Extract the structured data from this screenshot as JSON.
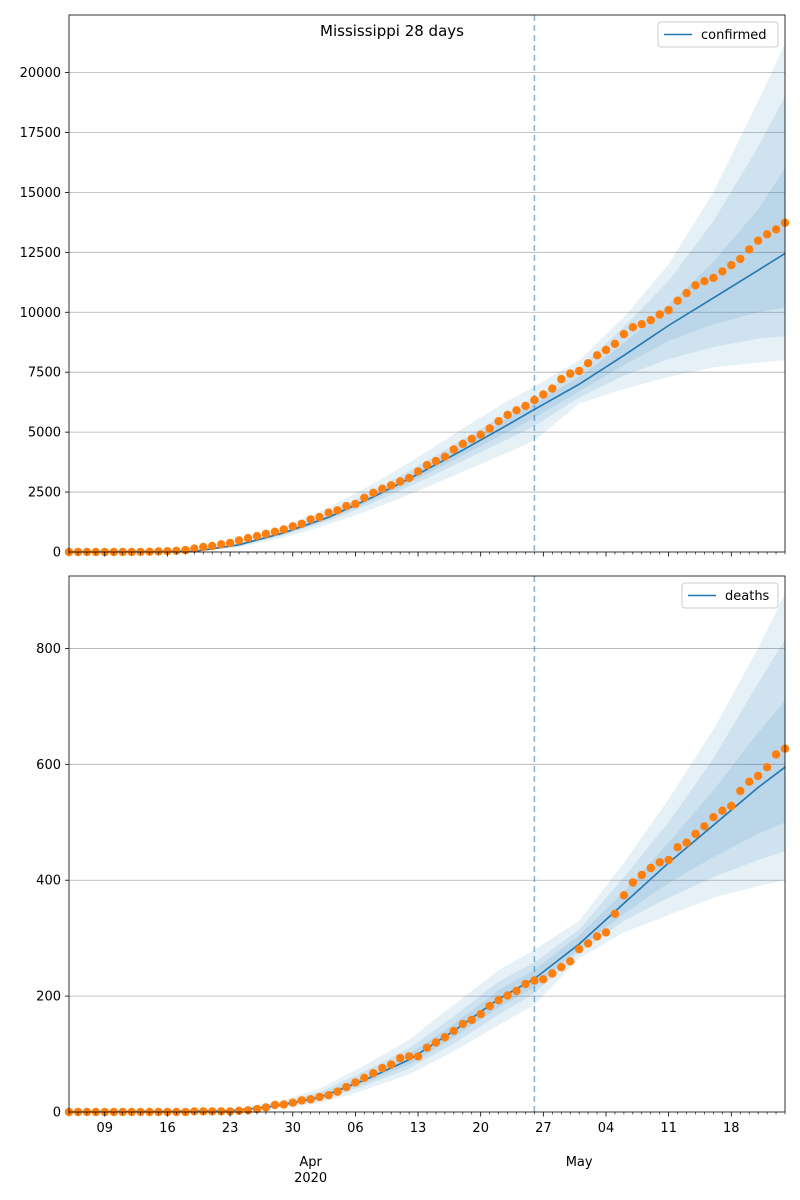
{
  "chart_data": [
    {
      "type": "line",
      "title": "Mississippi 28 days",
      "xlabel": "",
      "ylabel": "",
      "xlim": [
        "2020-03-05",
        "2020-05-24"
      ],
      "ylim": [
        0,
        22400
      ],
      "yticks": [
        0,
        2500,
        5000,
        7500,
        10000,
        12500,
        15000,
        17500,
        20000
      ],
      "grid": "horizontal",
      "legend_placement": "top-right",
      "forecast_start": "2020-04-26",
      "series": [
        {
          "name": "confirmed",
          "kind": "model-line",
          "color": "#1f77b4",
          "x": [
            "2020-03-05",
            "2020-03-19",
            "2020-03-24",
            "2020-03-29",
            "2020-04-03",
            "2020-04-08",
            "2020-04-13",
            "2020-04-18",
            "2020-04-23",
            "2020-04-26",
            "2020-05-01",
            "2020-05-06",
            "2020-05-11",
            "2020-05-16",
            "2020-05-21",
            "2020-05-24"
          ],
          "y": [
            0,
            30,
            300,
            800,
            1450,
            2300,
            3250,
            4250,
            5300,
            5950,
            7000,
            8200,
            9450,
            10600,
            11750,
            12450
          ]
        },
        {
          "name": "",
          "kind": "observed",
          "color": "#ff7f0e",
          "x": [
            "2020-03-05",
            "2020-03-06",
            "2020-03-07",
            "2020-03-08",
            "2020-03-09",
            "2020-03-10",
            "2020-03-11",
            "2020-03-12",
            "2020-03-13",
            "2020-03-14",
            "2020-03-15",
            "2020-03-16",
            "2020-03-17",
            "2020-03-18",
            "2020-03-19",
            "2020-03-20",
            "2020-03-21",
            "2020-03-22",
            "2020-03-23",
            "2020-03-24",
            "2020-03-25",
            "2020-03-26",
            "2020-03-27",
            "2020-03-28",
            "2020-03-29",
            "2020-03-30",
            "2020-03-31",
            "2020-04-01",
            "2020-04-02",
            "2020-04-03",
            "2020-04-04",
            "2020-04-05",
            "2020-04-06",
            "2020-04-07",
            "2020-04-08",
            "2020-04-09",
            "2020-04-10",
            "2020-04-11",
            "2020-04-12",
            "2020-04-13",
            "2020-04-14",
            "2020-04-15",
            "2020-04-16",
            "2020-04-17",
            "2020-04-18",
            "2020-04-19",
            "2020-04-20",
            "2020-04-21",
            "2020-04-22",
            "2020-04-23",
            "2020-04-24",
            "2020-04-25",
            "2020-04-26",
            "2020-04-27",
            "2020-04-28",
            "2020-04-29",
            "2020-04-30",
            "2020-05-01",
            "2020-05-02",
            "2020-05-03",
            "2020-05-04",
            "2020-05-05",
            "2020-05-06",
            "2020-05-07",
            "2020-05-08",
            "2020-05-09",
            "2020-05-10",
            "2020-05-11",
            "2020-05-12",
            "2020-05-13",
            "2020-05-14",
            "2020-05-15",
            "2020-05-16",
            "2020-05-17",
            "2020-05-18",
            "2020-05-19",
            "2020-05-20",
            "2020-05-21",
            "2020-05-22",
            "2020-05-23",
            "2020-05-24"
          ],
          "y": [
            0,
            0,
            0,
            0,
            0,
            0,
            1,
            2,
            6,
            10,
            21,
            34,
            50,
            80,
            140,
            207,
            249,
            320,
            377,
            485,
            579,
            663,
            758,
            847,
            937,
            1073,
            1177,
            1358,
            1455,
            1638,
            1738,
            1915,
            2003,
            2260,
            2469,
            2642,
            2781,
            2942,
            3087,
            3360,
            3624,
            3793,
            3974,
            4274,
            4512,
            4716,
            4894,
            5153,
            5458,
            5718,
            5911,
            6094,
            6342,
            6569,
            6815,
            7212,
            7441,
            7550,
            7877,
            8207,
            8424,
            8686,
            9090,
            9378,
            9501,
            9674,
            9908,
            10090,
            10483,
            10801,
            11123,
            11296,
            11432,
            11704,
            11967,
            12222,
            12624,
            12984,
            13252,
            13458,
            13731
          ]
        }
      ],
      "bands": {
        "color": "#1f77b4",
        "x": [
          "2020-03-05",
          "2020-03-19",
          "2020-03-24",
          "2020-03-29",
          "2020-04-03",
          "2020-04-08",
          "2020-04-13",
          "2020-04-18",
          "2020-04-23",
          "2020-04-26",
          "2020-05-01",
          "2020-05-06",
          "2020-05-11",
          "2020-05-16",
          "2020-05-21",
          "2020-05-24"
        ],
        "outer_low": [
          0,
          20,
          200,
          600,
          1150,
          1800,
          2550,
          3350,
          4150,
          4650,
          6200,
          6800,
          7300,
          7700,
          7900,
          8000
        ],
        "outer_high": [
          0,
          45,
          400,
          1050,
          1850,
          2850,
          3950,
          5150,
          6300,
          6900,
          8000,
          9800,
          12000,
          15000,
          18800,
          21200
        ],
        "mid_low": [
          0,
          25,
          250,
          700,
          1300,
          2050,
          2900,
          3800,
          4700,
          5250,
          6450,
          7350,
          8050,
          8550,
          8900,
          9000
        ],
        "mid_high": [
          0,
          38,
          350,
          900,
          1650,
          2550,
          3600,
          4700,
          5800,
          6400,
          7650,
          9400,
          11300,
          13800,
          16900,
          19000
        ],
        "inner_low": [
          0,
          27,
          275,
          750,
          1370,
          2180,
          3080,
          4030,
          5000,
          5600,
          6700,
          7800,
          8800,
          9500,
          10000,
          10200
        ],
        "inner_high": [
          0,
          33,
          325,
          850,
          1530,
          2420,
          3420,
          4470,
          5600,
          6200,
          7300,
          8700,
          10300,
          12100,
          14300,
          16000
        ]
      }
    },
    {
      "type": "line",
      "title": "",
      "xlabel": "",
      "ylabel": "",
      "xlim": [
        "2020-03-05",
        "2020-05-24"
      ],
      "ylim": [
        0,
        925
      ],
      "yticks": [
        0,
        200,
        400,
        600,
        800
      ],
      "grid": "horizontal",
      "legend_placement": "top-right",
      "forecast_start": "2020-04-26",
      "x_tick_labels": [
        "09",
        "16",
        "23",
        "30",
        "06",
        "13",
        "20",
        "27",
        "04",
        "11",
        "18"
      ],
      "x_tick_dates": [
        "2020-03-09",
        "2020-03-16",
        "2020-03-23",
        "2020-03-30",
        "2020-04-06",
        "2020-04-13",
        "2020-04-20",
        "2020-04-27",
        "2020-05-04",
        "2020-05-11",
        "2020-05-18"
      ],
      "x_month_labels": [
        {
          "date": "2020-04-01",
          "label": "Apr",
          "sub": "2020"
        },
        {
          "date": "2020-05-01",
          "label": "May",
          "sub": ""
        }
      ],
      "series": [
        {
          "name": "deaths",
          "kind": "model-line",
          "color": "#1f77b4",
          "x": [
            "2020-03-05",
            "2020-03-23",
            "2020-03-28",
            "2020-04-02",
            "2020-04-07",
            "2020-04-12",
            "2020-04-17",
            "2020-04-22",
            "2020-04-26",
            "2020-05-01",
            "2020-05-06",
            "2020-05-11",
            "2020-05-16",
            "2020-05-21",
            "2020-05-24"
          ],
          "y": [
            0,
            2,
            10,
            25,
            55,
            90,
            140,
            195,
            230,
            290,
            360,
            430,
            495,
            560,
            595
          ]
        },
        {
          "name": "",
          "kind": "observed",
          "color": "#ff7f0e",
          "x": [
            "2020-03-05",
            "2020-03-06",
            "2020-03-07",
            "2020-03-08",
            "2020-03-09",
            "2020-03-10",
            "2020-03-11",
            "2020-03-12",
            "2020-03-13",
            "2020-03-14",
            "2020-03-15",
            "2020-03-16",
            "2020-03-17",
            "2020-03-18",
            "2020-03-19",
            "2020-03-20",
            "2020-03-21",
            "2020-03-22",
            "2020-03-23",
            "2020-03-24",
            "2020-03-25",
            "2020-03-26",
            "2020-03-27",
            "2020-03-28",
            "2020-03-29",
            "2020-03-30",
            "2020-03-31",
            "2020-04-01",
            "2020-04-02",
            "2020-04-03",
            "2020-04-04",
            "2020-04-05",
            "2020-04-06",
            "2020-04-07",
            "2020-04-08",
            "2020-04-09",
            "2020-04-10",
            "2020-04-11",
            "2020-04-12",
            "2020-04-13",
            "2020-04-14",
            "2020-04-15",
            "2020-04-16",
            "2020-04-17",
            "2020-04-18",
            "2020-04-19",
            "2020-04-20",
            "2020-04-21",
            "2020-04-22",
            "2020-04-23",
            "2020-04-24",
            "2020-04-25",
            "2020-04-26",
            "2020-04-27",
            "2020-04-28",
            "2020-04-29",
            "2020-04-30",
            "2020-05-01",
            "2020-05-02",
            "2020-05-03",
            "2020-05-04",
            "2020-05-05",
            "2020-05-06",
            "2020-05-07",
            "2020-05-08",
            "2020-05-09",
            "2020-05-10",
            "2020-05-11",
            "2020-05-12",
            "2020-05-13",
            "2020-05-14",
            "2020-05-15",
            "2020-05-16",
            "2020-05-17",
            "2020-05-18",
            "2020-05-19",
            "2020-05-20",
            "2020-05-21",
            "2020-05-22",
            "2020-05-23",
            "2020-05-24"
          ],
          "y": [
            0,
            0,
            0,
            0,
            0,
            0,
            0,
            0,
            0,
            0,
            0,
            0,
            0,
            0,
            1,
            1,
            1,
            1,
            1,
            2,
            3,
            5,
            8,
            12,
            13,
            16,
            20,
            22,
            26,
            29,
            35,
            43,
            51,
            59,
            67,
            76,
            82,
            93,
            96,
            96,
            111,
            120,
            129,
            140,
            152,
            159,
            169,
            183,
            193,
            201,
            209,
            221,
            227,
            229,
            239,
            250,
            260,
            281,
            291,
            303,
            310,
            342,
            374,
            396,
            409,
            421,
            431,
            435,
            457,
            465,
            480,
            493,
            509,
            520,
            528,
            554,
            570,
            580,
            595,
            617,
            627
          ]
        }
      ],
      "bands": {
        "color": "#1f77b4",
        "x": [
          "2020-03-05",
          "2020-03-23",
          "2020-03-28",
          "2020-04-02",
          "2020-04-07",
          "2020-04-12",
          "2020-04-17",
          "2020-04-22",
          "2020-04-26",
          "2020-05-01",
          "2020-05-06",
          "2020-05-11",
          "2020-05-16",
          "2020-05-21",
          "2020-05-24"
        ],
        "outer_low": [
          0,
          1,
          6,
          15,
          38,
          65,
          105,
          150,
          185,
          265,
          310,
          340,
          370,
          390,
          400
        ],
        "outer_high": [
          0,
          4,
          16,
          40,
          80,
          125,
          185,
          245,
          280,
          330,
          430,
          540,
          660,
          800,
          895
        ],
        "mid_low": [
          0,
          1,
          8,
          19,
          45,
          75,
          118,
          168,
          205,
          275,
          330,
          370,
          405,
          435,
          450
        ],
        "mid_high": [
          0,
          3,
          14,
          34,
          70,
          110,
          165,
          225,
          258,
          315,
          405,
          500,
          610,
          740,
          815
        ],
        "inner_low": [
          0,
          2,
          9,
          22,
          50,
          82,
          128,
          180,
          215,
          282,
          342,
          395,
          440,
          480,
          500
        ],
        "inner_high": [
          0,
          3,
          12,
          30,
          62,
          100,
          152,
          210,
          245,
          305,
          380,
          465,
          555,
          655,
          710
        ]
      }
    }
  ]
}
